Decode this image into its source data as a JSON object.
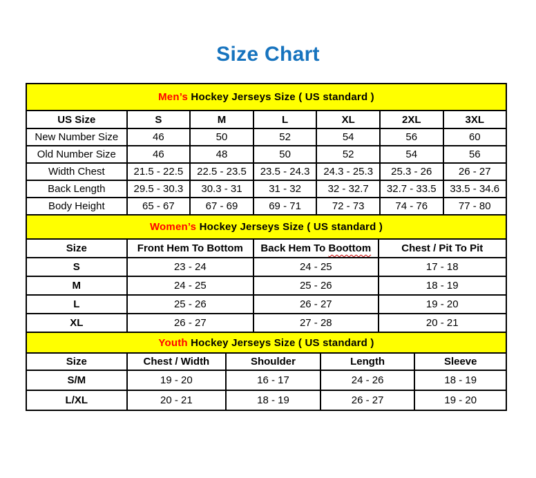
{
  "page_title": "Size Chart",
  "colors": {
    "title_blue": "#1673BE",
    "accent_red": "#FF0000",
    "banner_yellow": "#FFFF00",
    "border_black": "#000000",
    "squiggle_red": "#CC0000"
  },
  "sections": [
    {
      "name": "mens",
      "banner": {
        "highlight": "Men’s",
        "rest": " Hockey Jerseys Size ( US standard )"
      },
      "header": [
        {
          "text": "US Size"
        },
        {
          "text": "S"
        },
        {
          "text": "M"
        },
        {
          "text": "L"
        },
        {
          "text": "XL"
        },
        {
          "text": "2XL"
        },
        {
          "text": "3XL"
        }
      ],
      "rows": [
        {
          "label": "New Number Size",
          "values": [
            "46",
            "50",
            "52",
            "54",
            "56",
            "60"
          ]
        },
        {
          "label": "Old Number Size",
          "values": [
            "46",
            "48",
            "50",
            "52",
            "54",
            "56"
          ]
        },
        {
          "label": "Width Chest",
          "values": [
            "21.5 - 22.5",
            "22.5 - 23.5",
            "23.5 - 24.3",
            "24.3 - 25.3",
            "25.3 - 26",
            "26 - 27"
          ]
        },
        {
          "label": "Back Length",
          "values": [
            "29.5 - 30.3",
            "30.3 - 31",
            "31 - 32",
            "32 - 32.7",
            "32.7 - 33.5",
            "33.5 - 34.6"
          ]
        },
        {
          "label": "Body Height",
          "values": [
            "65 - 67",
            "67 - 69",
            "69 - 71",
            "72 - 73",
            "74 - 76",
            "77 - 80"
          ]
        }
      ]
    },
    {
      "name": "womens",
      "banner": {
        "highlight": "Women’s",
        "rest": " Hockey Jerseys Size ( US standard )"
      },
      "header": [
        {
          "text": "Size"
        },
        {
          "text": "Front Hem To Bottom"
        },
        {
          "text": "Back Hem To Boottom",
          "squiggle": true
        },
        {
          "text": "Chest / Pit To Pit"
        }
      ],
      "rows": [
        {
          "label": "S",
          "values": [
            "23 - 24",
            "24 - 25",
            "17 - 18"
          ]
        },
        {
          "label": "M",
          "values": [
            "24 - 25",
            "25 - 26",
            "18 - 19"
          ]
        },
        {
          "label": "L",
          "values": [
            "25 - 26",
            "26 - 27",
            "19 - 20"
          ]
        },
        {
          "label": "XL",
          "values": [
            "26 - 27",
            "27 - 28",
            "20 - 21"
          ]
        }
      ]
    },
    {
      "name": "youth",
      "banner": {
        "highlight": "Youth",
        "rest": " Hockey Jerseys Size ( US standard )"
      },
      "header": [
        {
          "text": "Size"
        },
        {
          "text": "Chest / Width"
        },
        {
          "text": "Shoulder"
        },
        {
          "text": "Length"
        },
        {
          "text": "Sleeve"
        }
      ],
      "rows": [
        {
          "label": "S/M",
          "values": [
            "19 - 20",
            "16 - 17",
            "24 - 26",
            "18 - 19"
          ]
        },
        {
          "label": "L/XL",
          "values": [
            "20 - 21",
            "18 - 19",
            "26 - 27",
            "19 - 20"
          ]
        }
      ]
    }
  ]
}
